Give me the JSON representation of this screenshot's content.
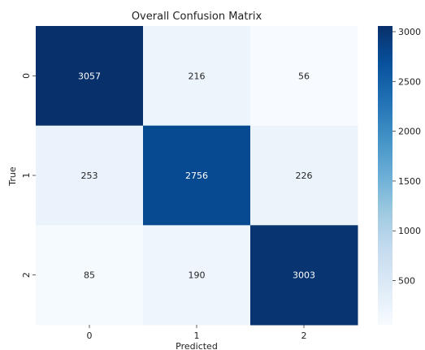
{
  "chart_data": {
    "type": "heatmap",
    "title": "Overall Confusion Matrix",
    "xlabel": "Predicted",
    "ylabel": "True",
    "x_categories": [
      "0",
      "1",
      "2"
    ],
    "y_categories": [
      "0",
      "1",
      "2"
    ],
    "values": [
      [
        3057,
        216,
        56
      ],
      [
        253,
        2756,
        226
      ],
      [
        85,
        190,
        3003
      ]
    ],
    "colormap": "Blues",
    "vmin": 56,
    "vmax": 3057,
    "colorbar_ticks": [
      500,
      1000,
      1500,
      2000,
      2500,
      3000
    ],
    "colorbar_tick_labels": [
      "500",
      "1000",
      "1500",
      "2000",
      "2500",
      "3000"
    ],
    "colorbar_placement": "right",
    "grid": false
  }
}
